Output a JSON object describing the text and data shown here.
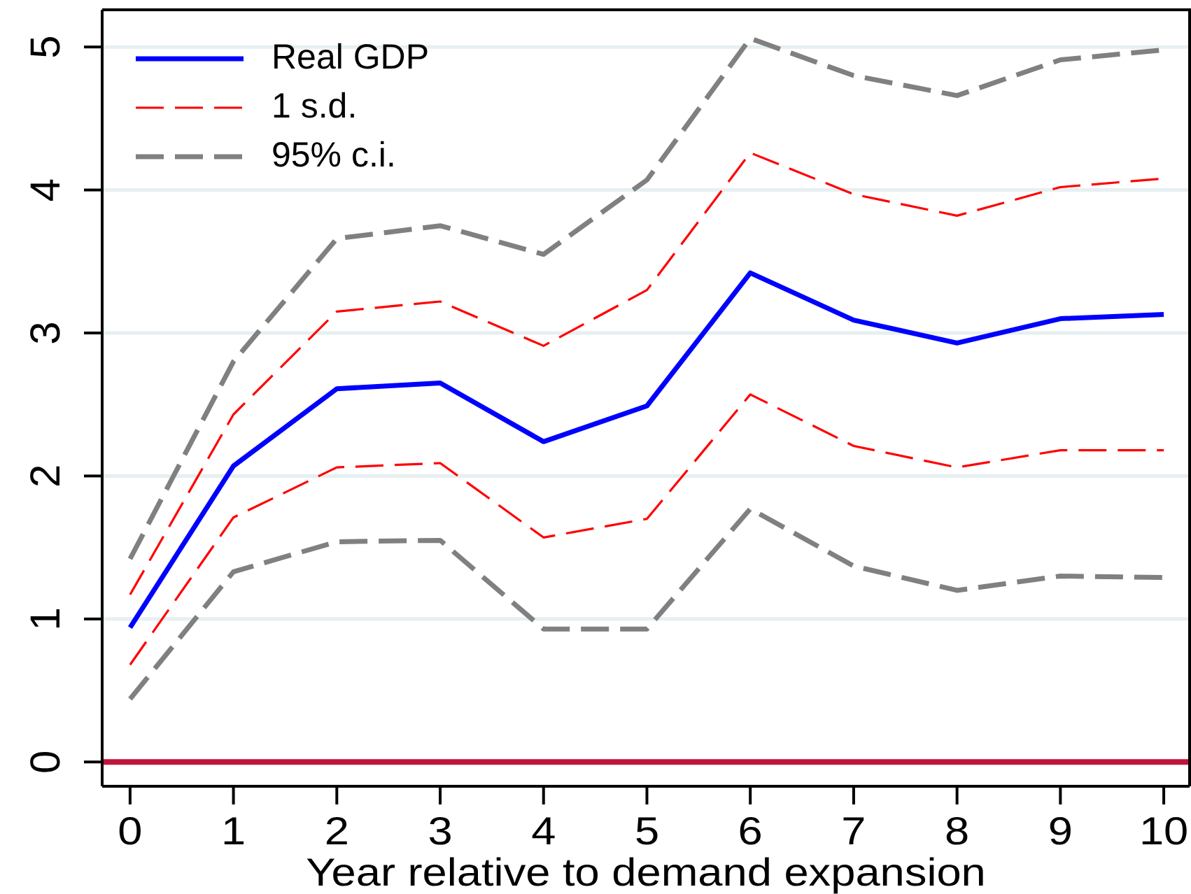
{
  "chart_data": {
    "type": "line",
    "xlabel": "Year relative to demand expansion",
    "x": [
      0,
      1,
      2,
      3,
      4,
      5,
      6,
      7,
      8,
      9,
      10
    ],
    "series": [
      {
        "name": "Real GDP",
        "color": "#0000ff",
        "line_style": "solid",
        "values": [
          0.94,
          2.07,
          2.61,
          2.65,
          2.24,
          2.49,
          3.42,
          3.09,
          2.93,
          3.1,
          3.13
        ]
      },
      {
        "name": "1 s.d.",
        "color": "#ff0000",
        "line_style": "dashed",
        "values": [
          1.17,
          2.43,
          3.15,
          3.22,
          2.91,
          3.3,
          4.26,
          3.97,
          3.82,
          4.02,
          4.08
        ]
      },
      {
        "color": "#ff0000",
        "line_style": "dashed",
        "values": [
          0.68,
          1.71,
          2.06,
          2.09,
          1.57,
          1.7,
          2.57,
          2.21,
          2.06,
          2.18,
          2.18
        ]
      },
      {
        "name": "95% c.i.",
        "color": "#808080",
        "line_style": "dashed",
        "values": [
          1.42,
          2.8,
          3.66,
          3.75,
          3.55,
          4.07,
          5.06,
          4.8,
          4.66,
          4.91,
          4.98
        ]
      },
      {
        "color": "#808080",
        "line_style": "dashed",
        "values": [
          0.44,
          1.33,
          1.54,
          1.55,
          0.93,
          0.93,
          1.77,
          1.37,
          1.2,
          1.3,
          1.29
        ]
      }
    ],
    "xlim": [
      -0.27,
      10.25
    ],
    "xticks": [
      0,
      1,
      2,
      3,
      4,
      5,
      6,
      7,
      8,
      9,
      10
    ],
    "ylim": [
      -0.17,
      5.26
    ],
    "yticks": [
      0,
      1,
      2,
      3,
      4,
      5
    ],
    "ref_lines": [
      {
        "axis": "y",
        "value": 0,
        "color": "#c0143c"
      }
    ],
    "grid": "y",
    "legend": "top left"
  }
}
